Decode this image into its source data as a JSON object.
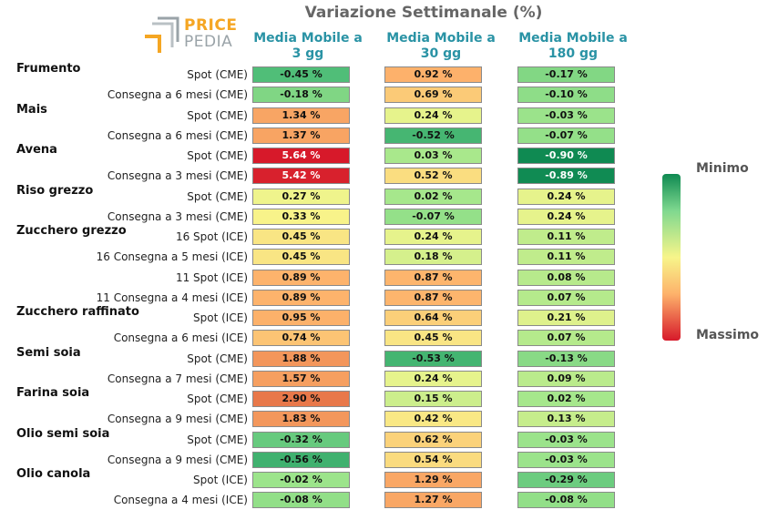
{
  "chart_data": {
    "type": "table",
    "title": "Variazione Settimanale (%)",
    "columns": [
      "Media Mobile a 3 gg",
      "Media Mobile a 30 gg",
      "Media Mobile a 180 gg"
    ],
    "legend": {
      "min_label": "Minimo",
      "max_label": "Massimo"
    },
    "groups": [
      {
        "name": "Frumento",
        "rows": [
          {
            "label": "Spot (CME)",
            "values": [
              "-0.45 %",
              "0.92 %",
              "-0.17 %"
            ]
          },
          {
            "label": "Consegna a 6 mesi (CME)",
            "values": [
              "-0.18 %",
              "0.69 %",
              "-0.10 %"
            ]
          }
        ]
      },
      {
        "name": "Mais",
        "rows": [
          {
            "label": "Spot (CME)",
            "values": [
              "1.34 %",
              "0.24 %",
              "-0.03 %"
            ]
          },
          {
            "label": "Consegna a 6 mesi (CME)",
            "values": [
              "1.37 %",
              "-0.52 %",
              "-0.07 %"
            ]
          }
        ]
      },
      {
        "name": "Avena",
        "rows": [
          {
            "label": "Spot (CME)",
            "values": [
              "5.64 %",
              "0.03 %",
              "-0.90 %"
            ]
          },
          {
            "label": "Consegna a 3 mesi (CME)",
            "values": [
              "5.42 %",
              "0.52 %",
              "-0.89 %"
            ]
          }
        ]
      },
      {
        "name": "Riso grezzo",
        "rows": [
          {
            "label": "Spot (CME)",
            "values": [
              "0.27 %",
              "0.02 %",
              "0.24 %"
            ]
          },
          {
            "label": "Consegna a 3 mesi (CME)",
            "values": [
              "0.33 %",
              "-0.07 %",
              "0.24 %"
            ]
          }
        ]
      },
      {
        "name": "Zucchero grezzo",
        "rows": [
          {
            "label": "16 Spot (ICE)",
            "values": [
              "0.45 %",
              "0.24 %",
              "0.11 %"
            ]
          },
          {
            "label": "16 Consegna a 5 mesi (ICE)",
            "values": [
              "0.45 %",
              "0.18 %",
              "0.11 %"
            ]
          },
          {
            "label": "11 Spot (ICE)",
            "values": [
              "0.89 %",
              "0.87 %",
              "0.08 %"
            ]
          },
          {
            "label": "11 Consegna a 4 mesi (ICE)",
            "values": [
              "0.89 %",
              "0.87 %",
              "0.07 %"
            ]
          }
        ]
      },
      {
        "name": "Zucchero raffinato",
        "rows": [
          {
            "label": "Spot (ICE)",
            "values": [
              "0.95 %",
              "0.64 %",
              "0.21 %"
            ]
          },
          {
            "label": "Consegna a 6 mesi (ICE)",
            "values": [
              "0.74 %",
              "0.45 %",
              "0.07 %"
            ]
          }
        ]
      },
      {
        "name": "Semi soia",
        "rows": [
          {
            "label": "Spot (CME)",
            "values": [
              "1.88 %",
              "-0.53 %",
              "-0.13 %"
            ]
          },
          {
            "label": "Consegna a 7 mesi (CME)",
            "values": [
              "1.57 %",
              "0.24 %",
              "0.09 %"
            ]
          }
        ]
      },
      {
        "name": "Farina soia",
        "rows": [
          {
            "label": "Spot (CME)",
            "values": [
              "2.90 %",
              "0.15 %",
              "0.02 %"
            ]
          },
          {
            "label": "Consegna a 9 mesi (CME)",
            "values": [
              "1.83 %",
              "0.42 %",
              "0.13 %"
            ]
          }
        ]
      },
      {
        "name": "Olio semi soia",
        "rows": [
          {
            "label": "Spot (CME)",
            "values": [
              "-0.32 %",
              "0.62 %",
              "-0.03 %"
            ]
          },
          {
            "label": "Consegna a 9 mesi (CME)",
            "values": [
              "-0.56 %",
              "0.54 %",
              "-0.03 %"
            ]
          }
        ]
      },
      {
        "name": "Olio canola",
        "rows": [
          {
            "label": "Spot (ICE)",
            "values": [
              "-0.02 %",
              "1.29 %",
              "-0.29 %"
            ]
          },
          {
            "label": "Consegna a 4 mesi (ICE)",
            "values": [
              "-0.08 %",
              "1.27 %",
              "-0.08 %"
            ]
          }
        ]
      }
    ]
  },
  "logo": {
    "line1": "PRICE",
    "line2": "PEDIA"
  }
}
